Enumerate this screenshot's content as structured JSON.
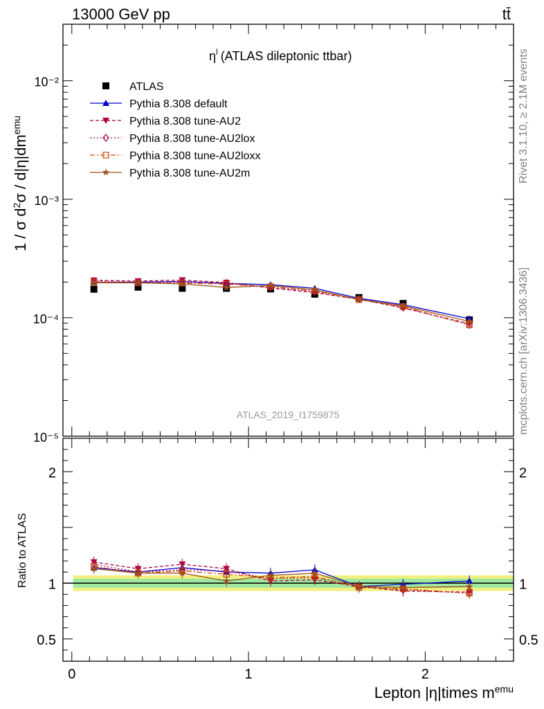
{
  "header": {
    "energy_label": "13000 GeV pp",
    "process_label": "tt̄"
  },
  "side_labels": {
    "rivet": "Rivet 3.1.10, ≥ 2.1M events",
    "mcplots": "mcplots.cern.ch [arXiv:1306.3436]"
  },
  "plot_title": "η",
  "plot_title_sup": "l",
  "plot_title_rest": "(ATLAS dileptonic ttbar)",
  "analysis_id": "ATLAS_2019_I1759875",
  "chart_data": [
    {
      "type": "line",
      "scale": "log",
      "ylabel": "1 / σ d²σ / d|η|dm^emu",
      "ylim": [
        1e-05,
        0.03
      ],
      "y_ticks": [
        "10⁻⁵",
        "10⁻⁴",
        "10⁻³",
        "10⁻²"
      ],
      "xlim": [
        -0.05,
        2.5
      ],
      "x": [
        0.125,
        0.375,
        0.625,
        0.875,
        1.125,
        1.375,
        1.625,
        1.875,
        2.25
      ],
      "legend_position": "top-left",
      "series": [
        {
          "name": "ATLAS",
          "color": "#000000",
          "marker": "square",
          "line": "none",
          "values": [
            0.000174,
            0.000181,
            0.000177,
            0.000177,
            0.000175,
            0.000158,
            0.000148,
            0.000132,
            9.6e-05
          ]
        },
        {
          "name": "Pythia 8.308 default",
          "color": "#0000cc",
          "marker": "triangle-up",
          "line": "solid",
          "values": [
            0.000198,
            0.0002,
            0.000202,
            0.000195,
            0.00019,
            0.000177,
            0.000146,
            0.000129,
            9.8e-05
          ]
        },
        {
          "name": "Pythia 8.308 tune-AU2",
          "color": "#aa0044",
          "marker": "triangle-down",
          "line": "dashed",
          "values": [
            0.000207,
            0.000204,
            0.000208,
            0.000198,
            0.000178,
            0.000163,
            0.000143,
            0.000121,
            8.9e-05
          ]
        },
        {
          "name": "Pythia 8.308 tune-AU2lox",
          "color": "#aa0044",
          "marker": "diamond-open",
          "line": "dotted",
          "values": [
            0.000204,
            0.000199,
            0.000199,
            0.000196,
            0.000181,
            0.000166,
            0.000144,
            0.000122,
            8.7e-05
          ]
        },
        {
          "name": "Pythia 8.308 tune-AU2loxx",
          "color": "#cc4400",
          "marker": "square-open",
          "line": "dashdot",
          "values": [
            0.0002,
            0.000197,
            0.000196,
            0.000192,
            0.000183,
            0.000168,
            0.000142,
            0.000124,
            8.7e-05
          ]
        },
        {
          "name": "Pythia 8.308 tune-AU2m",
          "color": "#a0501e",
          "marker": "star",
          "line": "solid",
          "values": [
            0.000197,
            0.000197,
            0.000193,
            0.00018,
            0.000187,
            0.000172,
            0.000143,
            0.000126,
            9.3e-05
          ]
        }
      ]
    },
    {
      "type": "line",
      "ylabel": "Ratio to ATLAS",
      "ylim": [
        0.3,
        2.3
      ],
      "y_ticks": [
        "0.5",
        "1",
        "2"
      ],
      "xlabel": "Lepton |η|times m^emu",
      "x_ticks": [
        "0",
        "1",
        "2"
      ],
      "x": [
        0.125,
        0.375,
        0.625,
        0.875,
        1.125,
        1.375,
        1.625,
        1.875,
        2.25
      ],
      "band_inner": [
        0.96,
        1.04
      ],
      "band_outer": [
        0.93,
        1.07
      ],
      "series": [
        {
          "name": "Pythia 8.308 default",
          "values": [
            1.14,
            1.1,
            1.14,
            1.1,
            1.09,
            1.12,
            0.97,
            0.99,
            1.02
          ]
        },
        {
          "name": "Pythia 8.308 tune-AU2",
          "values": [
            1.19,
            1.13,
            1.17,
            1.13,
            1.02,
            1.03,
            0.97,
            0.93,
            0.92
          ]
        },
        {
          "name": "Pythia 8.308 tune-AU2lox",
          "values": [
            1.17,
            1.1,
            1.12,
            1.11,
            1.04,
            1.05,
            0.97,
            0.94,
            0.91
          ]
        },
        {
          "name": "Pythia 8.308 tune-AU2loxx",
          "values": [
            1.15,
            1.09,
            1.11,
            1.08,
            1.05,
            1.06,
            0.96,
            0.95,
            0.91
          ]
        },
        {
          "name": "Pythia 8.308 tune-AU2m",
          "values": [
            1.13,
            1.09,
            1.09,
            1.02,
            1.07,
            1.09,
            0.97,
            0.96,
            0.97
          ]
        }
      ]
    }
  ]
}
